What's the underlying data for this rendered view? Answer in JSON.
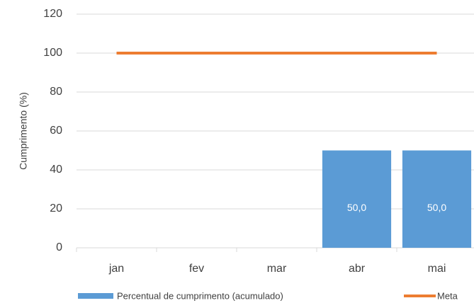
{
  "chart_data": {
    "type": "bar",
    "y_label": "Cumprimento (%)",
    "categories": [
      "jan",
      "fev",
      "mar",
      "abr",
      "mai"
    ],
    "series": [
      {
        "name": "Percentual de cumprimento (acumulado)",
        "type": "bar",
        "color": "#5b9bd5",
        "values": [
          null,
          null,
          null,
          50,
          50
        ],
        "value_labels": [
          null,
          null,
          null,
          "50,0",
          "50,0"
        ]
      },
      {
        "name": "Meta",
        "type": "line",
        "color": "#ed7d31",
        "values": [
          100,
          100,
          100,
          100,
          100
        ]
      }
    ],
    "ylim": [
      0,
      120
    ],
    "yticks": [
      0,
      20,
      40,
      60,
      80,
      100,
      120
    ],
    "grid": true
  }
}
